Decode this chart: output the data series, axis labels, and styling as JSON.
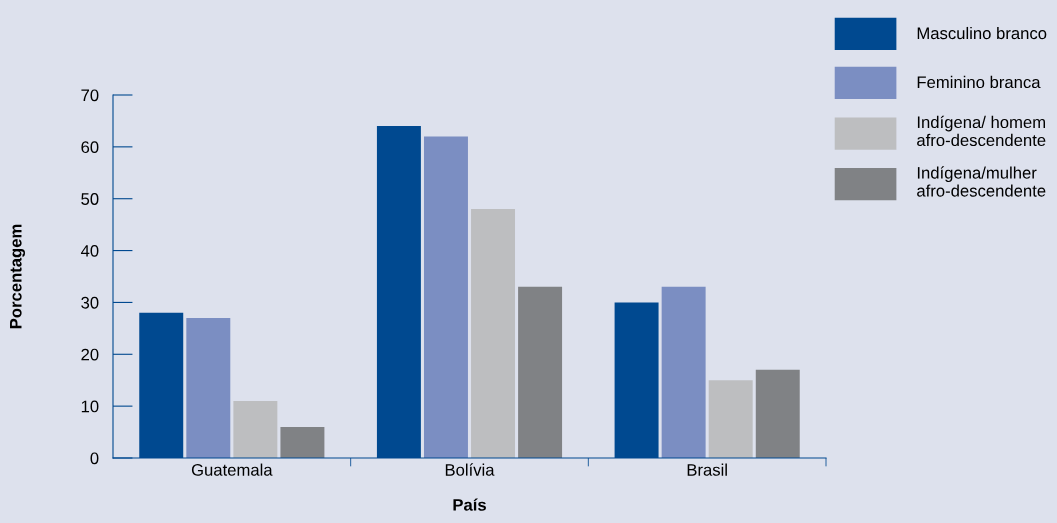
{
  "chart_data": {
    "type": "bar",
    "xlabel": "País",
    "ylabel": "Porcentagem",
    "categories": [
      "Guatemala",
      "Bolívia",
      "Brasil"
    ],
    "series": [
      {
        "name": "Masculino branco",
        "color": "#004990",
        "values": [
          28,
          64,
          30
        ]
      },
      {
        "name": "Feminino branca",
        "color": "#7b8ec2",
        "values": [
          27,
          62,
          33
        ]
      },
      {
        "name": "Indígena/ homem\nafro-descendente",
        "color": "#bdbec0",
        "values": [
          11,
          48,
          15
        ]
      },
      {
        "name": "Indígena/mulher\nafro-descendente",
        "color": "#808285",
        "values": [
          6,
          33,
          17
        ]
      }
    ],
    "ylim": [
      0,
      70
    ],
    "yticks": [
      0,
      10,
      20,
      30,
      40,
      50,
      60,
      70
    ],
    "grid": false,
    "legend": "top right"
  }
}
